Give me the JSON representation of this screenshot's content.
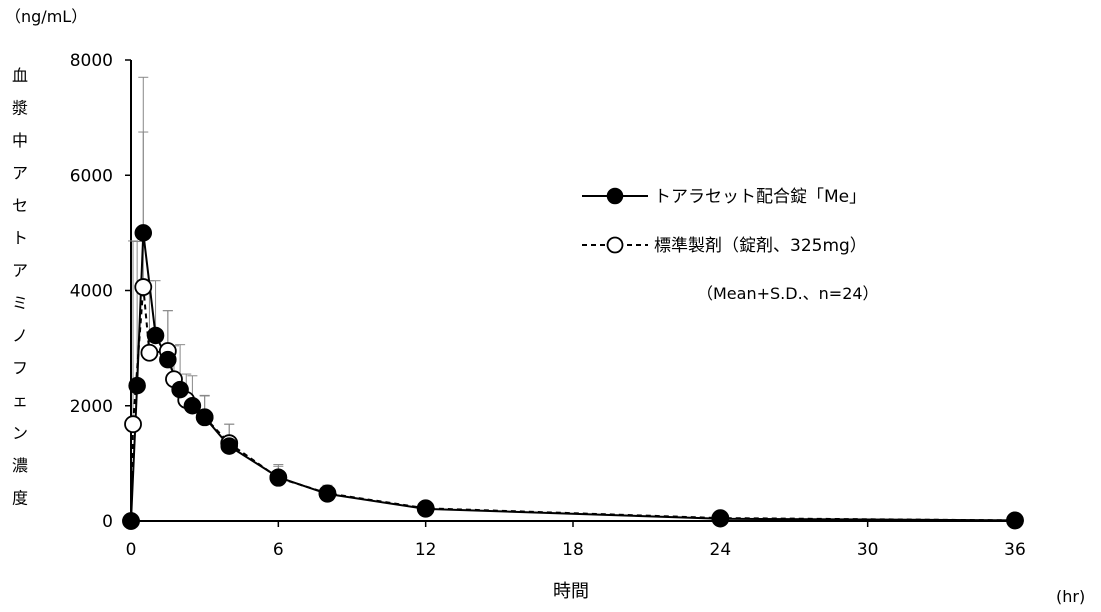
{
  "chart_data": {
    "type": "line",
    "y_unit_label": "（ng/mL）",
    "x_unit_label": "(hr)",
    "ylabel": "血漿中アセトアミノフェン濃度",
    "xlabel": "時間",
    "xlim": [
      0,
      36
    ],
    "ylim": [
      0,
      8000
    ],
    "x_ticks": [
      "0",
      "6",
      "12",
      "18",
      "24",
      "30",
      "36"
    ],
    "y_ticks": [
      "0",
      "2000",
      "4000",
      "6000",
      "8000"
    ],
    "legend_position": "right",
    "note": "（Mean+S.D.、n=24）",
    "series": [
      {
        "name": "トアラセット配合錠「Me」",
        "marker": "filled-circle",
        "line": "solid",
        "color": "#000000",
        "x": [
          0,
          0.25,
          0.5,
          1,
          1.5,
          2,
          2.5,
          3,
          4,
          6,
          8,
          12,
          24,
          36
        ],
        "y": [
          0,
          2350,
          5000,
          3220,
          2800,
          2280,
          2000,
          1800,
          1300,
          760,
          470,
          210,
          40,
          10
        ],
        "sd": [
          0,
          2500,
          1750,
          950,
          850,
          780,
          520,
          380,
          380,
          220,
          150,
          60,
          20,
          10
        ]
      },
      {
        "name": "標準製剤（錠剤、325mg）",
        "marker": "open-circle",
        "line": "dashed",
        "color": "#000000",
        "x": [
          0,
          0.083,
          0.5,
          0.75,
          1.5,
          1.75,
          2.25,
          3,
          4,
          6,
          8,
          12,
          24,
          36
        ],
        "y": [
          0,
          1680,
          4060,
          2920,
          2950,
          2460,
          2100,
          1800,
          1350,
          750,
          480,
          220,
          50,
          10
        ],
        "sd": [
          0,
          3180,
          3640,
          1250,
          700,
          580,
          450,
          370,
          330,
          200,
          130,
          50,
          20,
          10
        ]
      }
    ]
  }
}
